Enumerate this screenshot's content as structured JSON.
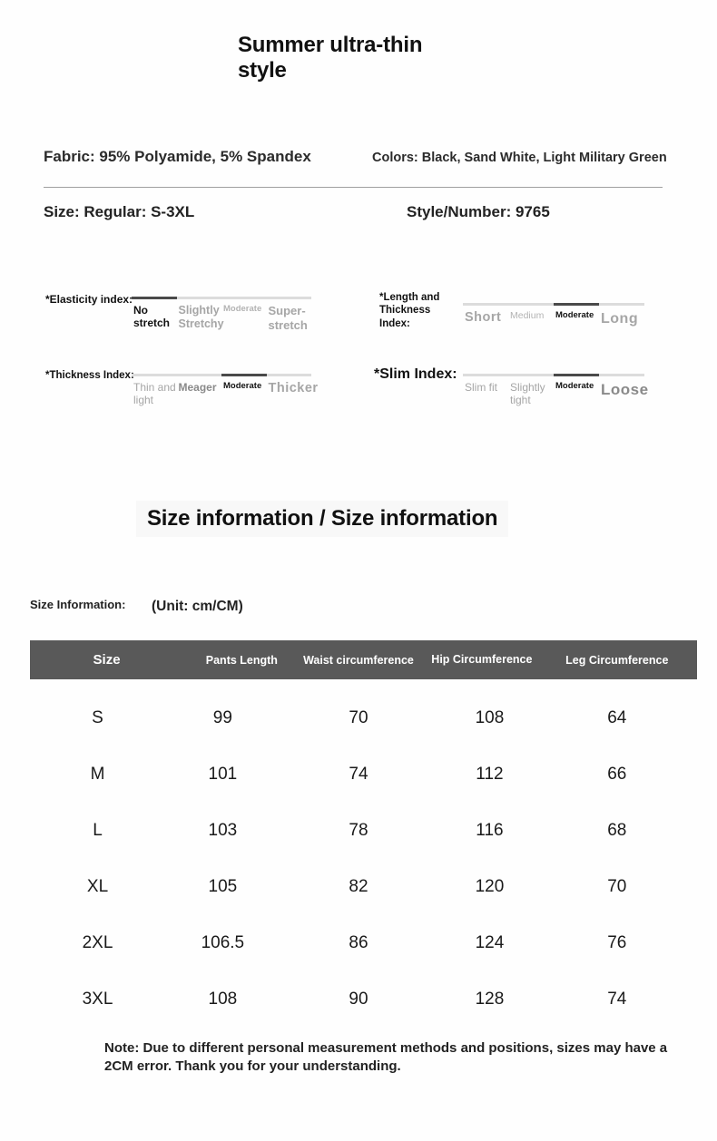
{
  "page": {
    "title": "Summer ultra-thin style"
  },
  "product": {
    "fabric": "Fabric: 95% Polyamide, 5% Spandex",
    "colors": "Colors: Black, Sand White, Light Military Green",
    "size_range": "Size: Regular: S-3XL",
    "style_number": "Style/Number: 9765"
  },
  "indexes": {
    "elasticity": {
      "label": "*Elasticity index:",
      "selected": 0,
      "options": [
        "No stretch",
        "Slightly Stretchy",
        "Moderate",
        "Super-stretch"
      ]
    },
    "length_thickness": {
      "label": "*Length and Thickness Index:",
      "selected": 2,
      "options": [
        "Short",
        "Medium",
        "Moderate",
        "Long"
      ]
    },
    "thickness": {
      "label": "*Thickness Index:",
      "selected": 2,
      "options": [
        "Thin and light",
        "Meager",
        "Moderate",
        "Thicker"
      ]
    },
    "slim": {
      "label": "*Slim Index:",
      "selected": 2,
      "options": [
        "Slim fit",
        "Slightly tight",
        "Moderate",
        "Loose"
      ]
    }
  },
  "size_section": {
    "heading": "Size information / Size information",
    "label": "Size Information:",
    "unit": "(Unit: cm/CM)"
  },
  "size_table": {
    "headers": [
      "Size",
      "Pants Length",
      "Waist circumference",
      "Hip Circumference",
      "Leg Circumference"
    ],
    "rows": [
      [
        "S",
        "99",
        "70",
        "108",
        "64"
      ],
      [
        "M",
        "101",
        "74",
        "112",
        "66"
      ],
      [
        "L",
        "103",
        "78",
        "116",
        "68"
      ],
      [
        "XL",
        "105",
        "82",
        "120",
        "70"
      ],
      [
        "2XL",
        "106.5",
        "86",
        "124",
        "76"
      ],
      [
        "3XL",
        "108",
        "90",
        "128",
        "74"
      ]
    ]
  },
  "note": "Note: Due to different personal measurement methods and positions, sizes may have a 2CM error. Thank you for your understanding.",
  "theme": {
    "table_header_bg": "#595959",
    "scale_dark": "#4a4a4a",
    "scale_light": "#dcdcdc",
    "muted_text": "#a6a6a6"
  }
}
